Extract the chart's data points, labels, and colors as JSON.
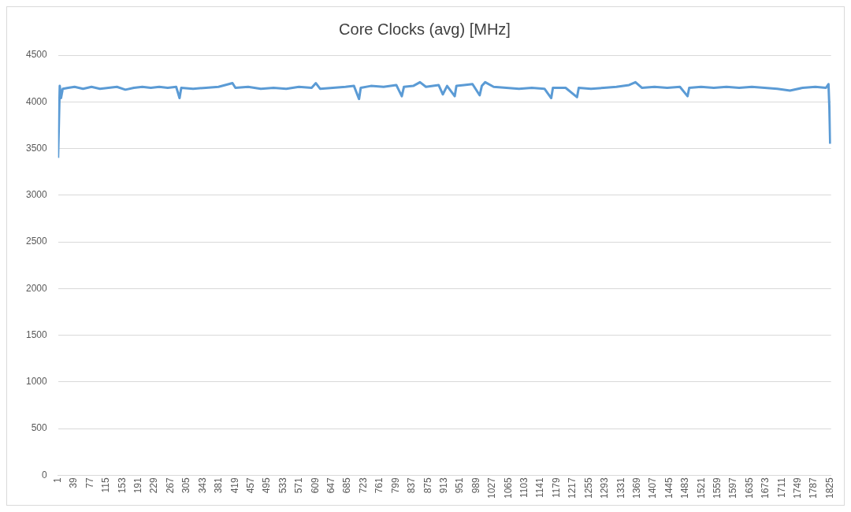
{
  "chart_data": {
    "type": "line",
    "title": "Core Clocks (avg) [MHz]",
    "x": [
      1,
      3,
      5,
      8,
      12,
      25,
      40,
      60,
      80,
      100,
      120,
      140,
      160,
      180,
      200,
      220,
      240,
      260,
      280,
      288,
      292,
      320,
      350,
      380,
      413,
      420,
      450,
      480,
      510,
      540,
      570,
      600,
      610,
      620,
      650,
      680,
      700,
      712,
      716,
      740,
      770,
      800,
      813,
      818,
      840,
      856,
      870,
      900,
      910,
      920,
      938,
      942,
      960,
      980,
      997,
      1002,
      1010,
      1030,
      1060,
      1090,
      1120,
      1150,
      1166,
      1170,
      1200,
      1227,
      1231,
      1260,
      1290,
      1320,
      1350,
      1365,
      1380,
      1410,
      1440,
      1470,
      1488,
      1492,
      1520,
      1550,
      1580,
      1610,
      1640,
      1670,
      1700,
      1730,
      1760,
      1790,
      1815,
      1821,
      1823,
      1825
    ],
    "series": [
      {
        "color": "#5b9bd5",
        "values": [
          3400,
          3780,
          4170,
          4040,
          4140,
          4150,
          4160,
          4140,
          4160,
          4140,
          4150,
          4160,
          4130,
          4150,
          4160,
          4150,
          4160,
          4150,
          4160,
          4040,
          4150,
          4140,
          4150,
          4160,
          4200,
          4150,
          4160,
          4140,
          4150,
          4140,
          4160,
          4150,
          4200,
          4140,
          4150,
          4160,
          4170,
          4030,
          4150,
          4170,
          4160,
          4180,
          4060,
          4160,
          4170,
          4210,
          4160,
          4180,
          4080,
          4170,
          4060,
          4170,
          4180,
          4190,
          4070,
          4170,
          4210,
          4160,
          4150,
          4140,
          4150,
          4140,
          4040,
          4150,
          4150,
          4050,
          4150,
          4140,
          4150,
          4160,
          4180,
          4210,
          4150,
          4160,
          4150,
          4160,
          4060,
          4150,
          4160,
          4150,
          4160,
          4150,
          4160,
          4150,
          4140,
          4120,
          4150,
          4160,
          4150,
          4190,
          3950,
          3550
        ]
      }
    ],
    "xlim": [
      1,
      1827
    ],
    "xticks": [
      1,
      39,
      77,
      115,
      153,
      191,
      229,
      267,
      305,
      343,
      381,
      419,
      457,
      495,
      533,
      571,
      609,
      647,
      685,
      723,
      761,
      799,
      837,
      875,
      913,
      951,
      989,
      1027,
      1065,
      1103,
      1141,
      1179,
      1217,
      1255,
      1293,
      1331,
      1369,
      1407,
      1445,
      1483,
      1521,
      1559,
      1597,
      1635,
      1673,
      1711,
      1749,
      1787,
      1825
    ],
    "ylim": [
      0,
      4500
    ],
    "yticks": [
      0,
      500,
      1000,
      1500,
      2000,
      2500,
      3000,
      3500,
      4000,
      4500
    ],
    "grid": "y",
    "legend": false,
    "marker": "none",
    "line_style": "solid"
  }
}
